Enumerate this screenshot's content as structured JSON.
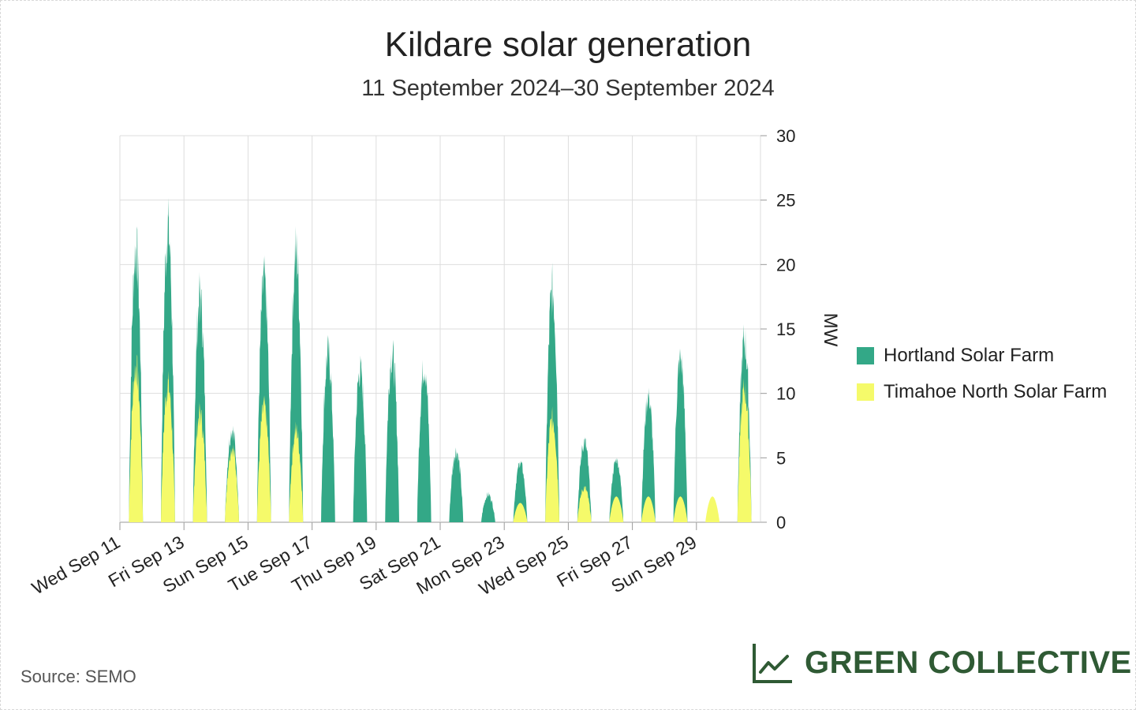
{
  "title": "Kildare solar generation",
  "subtitle": "11 September 2024–30 September 2024",
  "source": "Source: SEMO",
  "brand": {
    "name": "GREEN COLLECTIVE",
    "color": "#2f5a34",
    "icon": "line-chart-icon"
  },
  "legend": [
    {
      "label": "Hortland Solar Farm",
      "color": "#33a887"
    },
    {
      "label": "Timahoe North Solar Farm",
      "color": "#f5fa6a"
    }
  ],
  "chart_data": {
    "type": "area",
    "stacked": true,
    "title": "Kildare solar generation",
    "subtitle": "11 September 2024–30 September 2024",
    "ylabel": "MW",
    "ylim": [
      0,
      30
    ],
    "yticks": [
      0,
      5,
      10,
      15,
      20,
      25,
      30
    ],
    "xlim_days": [
      0,
      20
    ],
    "xticks": [
      {
        "day": 0,
        "label": "Wed Sep 11"
      },
      {
        "day": 2,
        "label": "Fri Sep 13"
      },
      {
        "day": 4,
        "label": "Sun Sep 15"
      },
      {
        "day": 6,
        "label": "Tue Sep 17"
      },
      {
        "day": 8,
        "label": "Thu Sep 19"
      },
      {
        "day": 10,
        "label": "Sat Sep 21"
      },
      {
        "day": 12,
        "label": "Mon Sep 23"
      },
      {
        "day": 14,
        "label": "Wed Sep 25"
      },
      {
        "day": 16,
        "label": "Fri Sep 27"
      },
      {
        "day": 18,
        "label": "Sun Sep 29"
      }
    ],
    "series": [
      {
        "name": "Timahoe North Solar Farm",
        "color": "#f5fa6a",
        "daily_peak_mw": [
          13.5,
          12.0,
          9.5,
          6.5,
          10.0,
          8.0,
          0,
          0,
          0,
          0,
          0,
          0,
          1.5,
          9.0,
          3.0,
          2.0,
          2.0,
          2.0,
          2.0,
          11.5
        ]
      },
      {
        "name": "Hortland Solar Farm",
        "color": "#33a887",
        "daily_peak_mw": [
          10.3,
          13.7,
          10.2,
          1.6,
          11.0,
          15.5,
          14.7,
          13.2,
          14.6,
          13.6,
          6.2,
          2.4,
          3.5,
          11.2,
          4.0,
          3.2,
          8.7,
          12.0,
          0,
          4.3
        ]
      }
    ]
  }
}
